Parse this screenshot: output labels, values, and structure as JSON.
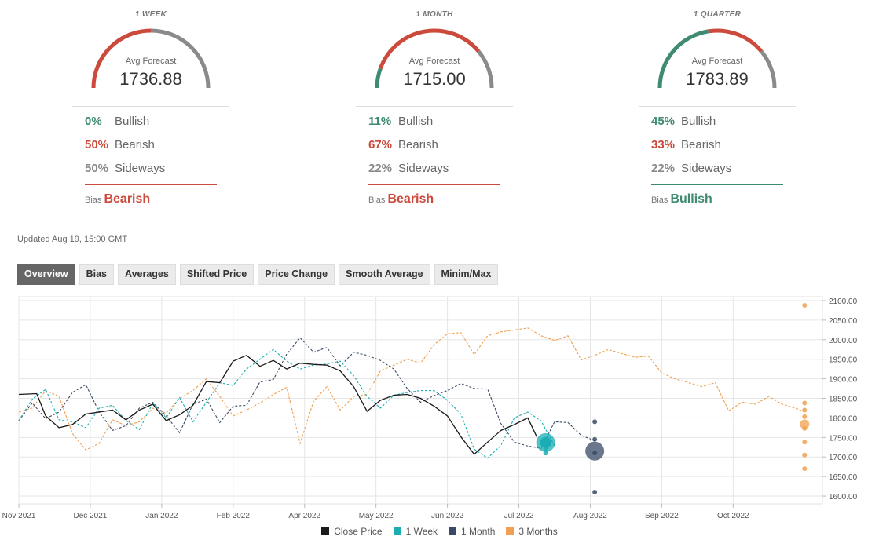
{
  "colors": {
    "bullish": "#3e8a73",
    "bearish": "#cc4a3b",
    "sideways": "#8a8a8a",
    "close_price": "#1a1a1a",
    "week": "#1aaeb4",
    "month": "#3a4a66",
    "quarter": "#f0a050"
  },
  "gauges": [
    {
      "period": "1 WEEK",
      "avg_label": "Avg Forecast",
      "avg_value": "1736.88",
      "bullish_pct": "0%",
      "bearish_pct": "50%",
      "sideways_pct": "50%",
      "bullish_label": "Bullish",
      "bearish_label": "Bearish",
      "sideways_label": "Sideways",
      "bias_label": "Bias",
      "bias_value": "Bearish",
      "bullish": 0,
      "bearish": 50,
      "sideways": 50
    },
    {
      "period": "1 MONTH",
      "avg_label": "Avg Forecast",
      "avg_value": "1715.00",
      "bullish_pct": "11%",
      "bearish_pct": "67%",
      "sideways_pct": "22%",
      "bullish_label": "Bullish",
      "bearish_label": "Bearish",
      "sideways_label": "Sideways",
      "bias_label": "Bias",
      "bias_value": "Bearish",
      "bullish": 11,
      "bearish": 67,
      "sideways": 22
    },
    {
      "period": "1 QUARTER",
      "avg_label": "Avg Forecast",
      "avg_value": "1783.89",
      "bullish_pct": "45%",
      "bearish_pct": "33%",
      "sideways_pct": "22%",
      "bullish_label": "Bullish",
      "bearish_label": "Bearish",
      "sideways_label": "Sideways",
      "bias_label": "Bias",
      "bias_value": "Bullish",
      "bullish": 45,
      "bearish": 33,
      "sideways": 22
    }
  ],
  "updated": "Updated Aug 19, 15:00 GMT",
  "tabs": [
    "Overview",
    "Bias",
    "Averages",
    "Shifted Price",
    "Price Change",
    "Smooth Average",
    "Minim/Max"
  ],
  "active_tab": "Overview",
  "legend": [
    "Close Price",
    "1 Week",
    "1 Month",
    "3 Months"
  ],
  "chart_data": {
    "type": "line",
    "x_ticks": [
      "Nov 2021",
      "Dec 2021",
      "Jan 2022",
      "Feb 2022",
      "Apr 2022",
      "May 2022",
      "Jun 2022",
      "Jul 2022",
      "Aug 2022",
      "Sep 2022",
      "Oct 2022"
    ],
    "y_ticks": [
      1600,
      1650,
      1700,
      1750,
      1800,
      1850,
      1900,
      1950,
      2000,
      2050,
      2100
    ],
    "ylim": [
      1580,
      2110
    ],
    "grid": true,
    "legend_position": "bottom",
    "series": [
      {
        "name": "Close Price",
        "style": "solid",
        "points": [
          [
            0,
            1860
          ],
          [
            4,
            1862
          ],
          [
            6,
            1805
          ],
          [
            9,
            1775
          ],
          [
            12,
            1783
          ],
          [
            15,
            1810
          ],
          [
            18,
            1815
          ],
          [
            21,
            1820
          ],
          [
            24,
            1795
          ],
          [
            27,
            1820
          ],
          [
            30,
            1835
          ],
          [
            33,
            1793
          ],
          [
            36,
            1808
          ],
          [
            39,
            1832
          ],
          [
            42,
            1893
          ],
          [
            45,
            1890
          ],
          [
            48,
            1945
          ],
          [
            51,
            1960
          ],
          [
            54,
            1932
          ],
          [
            57,
            1947
          ],
          [
            60,
            1925
          ],
          [
            63,
            1940
          ],
          [
            66,
            1937
          ],
          [
            69,
            1935
          ],
          [
            72,
            1920
          ],
          [
            75,
            1880
          ],
          [
            78,
            1817
          ],
          [
            81,
            1845
          ],
          [
            84,
            1858
          ],
          [
            87,
            1860
          ],
          [
            90,
            1850
          ],
          [
            93,
            1830
          ],
          [
            96,
            1805
          ],
          [
            99,
            1752
          ],
          [
            102,
            1707
          ],
          [
            105,
            1738
          ],
          [
            108,
            1768
          ],
          [
            111,
            1783
          ],
          [
            114,
            1800
          ],
          [
            116,
            1752
          ]
        ]
      },
      {
        "name": "1 Week",
        "style": "dashed",
        "points": [
          [
            0,
            1793
          ],
          [
            3,
            1848
          ],
          [
            6,
            1873
          ],
          [
            9,
            1795
          ],
          [
            12,
            1790
          ],
          [
            15,
            1775
          ],
          [
            18,
            1825
          ],
          [
            21,
            1832
          ],
          [
            24,
            1793
          ],
          [
            27,
            1770
          ],
          [
            30,
            1838
          ],
          [
            33,
            1800
          ],
          [
            36,
            1852
          ],
          [
            39,
            1790
          ],
          [
            42,
            1840
          ],
          [
            45,
            1890
          ],
          [
            48,
            1883
          ],
          [
            51,
            1925
          ],
          [
            54,
            1950
          ],
          [
            57,
            1975
          ],
          [
            60,
            1945
          ],
          [
            63,
            1925
          ],
          [
            66,
            1935
          ],
          [
            69,
            1938
          ],
          [
            72,
            1945
          ],
          [
            75,
            1908
          ],
          [
            78,
            1855
          ],
          [
            81,
            1825
          ],
          [
            84,
            1858
          ],
          [
            87,
            1865
          ],
          [
            90,
            1870
          ],
          [
            93,
            1870
          ],
          [
            96,
            1845
          ],
          [
            99,
            1810
          ],
          [
            102,
            1720
          ],
          [
            105,
            1697
          ],
          [
            108,
            1730
          ],
          [
            111,
            1800
          ],
          [
            114,
            1815
          ],
          [
            117,
            1792
          ],
          [
            120,
            1728
          ]
        ]
      },
      {
        "name": "1 Month",
        "style": "dashed",
        "points": [
          [
            0,
            1793
          ],
          [
            3,
            1838
          ],
          [
            6,
            1798
          ],
          [
            9,
            1815
          ],
          [
            12,
            1865
          ],
          [
            15,
            1885
          ],
          [
            18,
            1815
          ],
          [
            21,
            1768
          ],
          [
            24,
            1780
          ],
          [
            27,
            1825
          ],
          [
            30,
            1840
          ],
          [
            33,
            1805
          ],
          [
            36,
            1762
          ],
          [
            39,
            1835
          ],
          [
            42,
            1848
          ],
          [
            45,
            1788
          ],
          [
            48,
            1830
          ],
          [
            51,
            1832
          ],
          [
            54,
            1892
          ],
          [
            57,
            1898
          ],
          [
            60,
            1963
          ],
          [
            63,
            2005
          ],
          [
            66,
            1968
          ],
          [
            69,
            1980
          ],
          [
            72,
            1933
          ],
          [
            75,
            1968
          ],
          [
            78,
            1960
          ],
          [
            81,
            1947
          ],
          [
            84,
            1925
          ],
          [
            87,
            1875
          ],
          [
            90,
            1840
          ],
          [
            93,
            1857
          ],
          [
            96,
            1870
          ],
          [
            99,
            1888
          ],
          [
            102,
            1875
          ],
          [
            105,
            1874
          ],
          [
            108,
            1785
          ],
          [
            111,
            1738
          ],
          [
            114,
            1728
          ],
          [
            117,
            1722
          ],
          [
            120,
            1790
          ],
          [
            123,
            1788
          ],
          [
            126,
            1755
          ],
          [
            129,
            1742
          ]
        ]
      },
      {
        "name": "3 Months",
        "style": "dashed",
        "points": [
          [
            0,
            1815
          ],
          [
            3,
            1825
          ],
          [
            6,
            1870
          ],
          [
            9,
            1855
          ],
          [
            12,
            1760
          ],
          [
            15,
            1718
          ],
          [
            18,
            1735
          ],
          [
            21,
            1795
          ],
          [
            24,
            1780
          ],
          [
            27,
            1790
          ],
          [
            30,
            1825
          ],
          [
            33,
            1812
          ],
          [
            36,
            1850
          ],
          [
            39,
            1870
          ],
          [
            42,
            1900
          ],
          [
            45,
            1855
          ],
          [
            48,
            1805
          ],
          [
            51,
            1820
          ],
          [
            54,
            1838
          ],
          [
            57,
            1860
          ],
          [
            60,
            1878
          ],
          [
            63,
            1735
          ],
          [
            66,
            1842
          ],
          [
            69,
            1880
          ],
          [
            72,
            1820
          ],
          [
            75,
            1855
          ],
          [
            78,
            1860
          ],
          [
            81,
            1920
          ],
          [
            84,
            1935
          ],
          [
            87,
            1950
          ],
          [
            90,
            1940
          ],
          [
            93,
            1987
          ],
          [
            96,
            2015
          ],
          [
            99,
            2018
          ],
          [
            102,
            1962
          ],
          [
            105,
            2010
          ],
          [
            108,
            2020
          ],
          [
            111,
            2025
          ],
          [
            114,
            2030
          ],
          [
            117,
            2010
          ],
          [
            120,
            1998
          ],
          [
            123,
            2010
          ],
          [
            126,
            1948
          ],
          [
            129,
            1960
          ],
          [
            132,
            1975
          ],
          [
            135,
            1965
          ],
          [
            138,
            1955
          ],
          [
            141,
            1958
          ],
          [
            144,
            1915
          ],
          [
            147,
            1900
          ],
          [
            150,
            1890
          ],
          [
            153,
            1880
          ],
          [
            156,
            1890
          ],
          [
            159,
            1818
          ],
          [
            162,
            1840
          ],
          [
            165,
            1835
          ],
          [
            168,
            1855
          ],
          [
            171,
            1835
          ],
          [
            174,
            1825
          ],
          [
            176,
            1815
          ]
        ]
      }
    ],
    "forecast_points": [
      {
        "series": "1 Week",
        "x": 118,
        "values": [
          1710,
          1722,
          1733,
          1740
        ]
      },
      {
        "series": "1 Week",
        "x": 118,
        "value": 1736.88,
        "kind": "average"
      },
      {
        "series": "1 Month",
        "x": 129,
        "values": [
          1610,
          1710,
          1745,
          1790
        ]
      },
      {
        "series": "1 Month",
        "x": 129,
        "value": 1715.0,
        "kind": "average"
      },
      {
        "series": "3 Months",
        "x": 176,
        "values": [
          1670,
          1705,
          1738,
          1773,
          1803,
          1820,
          1838,
          2088
        ]
      },
      {
        "series": "3 Months",
        "x": 176,
        "value": 1783.89,
        "kind": "average"
      }
    ],
    "x_tick_positions": [
      0,
      16,
      32,
      48,
      64,
      80,
      96,
      112,
      128,
      144,
      160
    ],
    "xlim": [
      0,
      180
    ]
  }
}
